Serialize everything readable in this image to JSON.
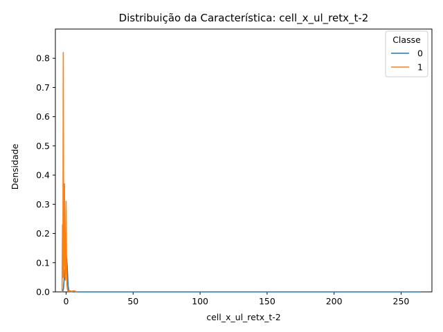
{
  "chart_data": {
    "type": "line",
    "title": "Distribuição da Característica: cell_x_ul_retx_t-2",
    "xlabel": "cell_x_ul_retx_t-2",
    "ylabel": "Densidade",
    "xlim": [
      -8,
      273
    ],
    "ylim": [
      0,
      0.9
    ],
    "xticks": [
      0,
      50,
      100,
      150,
      200,
      250
    ],
    "yticks": [
      0.0,
      0.1,
      0.2,
      0.3,
      0.4,
      0.5,
      0.6,
      0.7,
      0.8
    ],
    "grid": false,
    "legend": {
      "title": "Classe",
      "placement": "top-right"
    },
    "series": [
      {
        "name": "0",
        "color": "#1f77b4",
        "x": [
          -3,
          -2.5,
          -2,
          -1.5,
          -1,
          -0.5,
          0,
          0.5,
          1,
          1.5,
          2,
          3,
          5,
          10,
          50,
          100,
          150,
          200,
          265
        ],
        "y": [
          0,
          0.002,
          0.01,
          0.04,
          0.075,
          0.06,
          0.13,
          0.11,
          0.07,
          0.02,
          0.005,
          0.001,
          0,
          0,
          0,
          0,
          0,
          0,
          0
        ]
      },
      {
        "name": "1",
        "color": "#ff7f0e",
        "x": [
          -3,
          -2.7,
          -2.4,
          -2.1,
          -1.8,
          -1.5,
          -1.2,
          -0.9,
          -0.6,
          -0.3,
          0,
          0.3,
          0.6,
          0.9,
          1.2,
          1.5,
          1.8,
          2.1,
          2.5,
          3,
          4,
          5,
          6,
          7,
          8
        ],
        "y": [
          0,
          0.23,
          0.05,
          0.82,
          0.05,
          0.17,
          0.37,
          0.1,
          0.04,
          0.12,
          0.31,
          0.1,
          0.03,
          0.01,
          0.005,
          0.003,
          0.002,
          0.001,
          0.002,
          0.004,
          0.002,
          0.003,
          0.004,
          0.002,
          0
        ]
      }
    ]
  }
}
